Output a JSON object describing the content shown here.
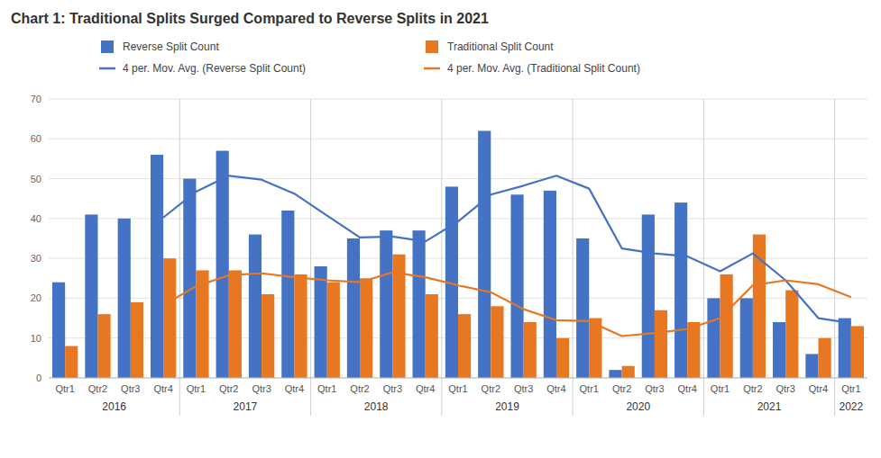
{
  "chart_data": {
    "type": "bar",
    "title": "Chart 1: Traditional Splits Surged Compared to Reverse Splits in 2021",
    "categories": [
      "Qtr1",
      "Qtr2",
      "Qtr3",
      "Qtr4",
      "Qtr1",
      "Qtr2",
      "Qtr3",
      "Qtr4",
      "Qtr1",
      "Qtr2",
      "Qtr3",
      "Qtr4",
      "Qtr1",
      "Qtr2",
      "Qtr3",
      "Qtr4",
      "Qtr1",
      "Qtr2",
      "Qtr3",
      "Qtr4",
      "Qtr1",
      "Qtr2",
      "Qtr3",
      "Qtr4",
      "Qtr1"
    ],
    "annotations": [
      "2016",
      "2017",
      "2018",
      "2019",
      "2020",
      "2021",
      "2022"
    ],
    "series": [
      {
        "name": "Reverse Split Count",
        "type": "bar",
        "color": "#4472C4",
        "values": [
          24,
          41,
          40,
          56,
          50,
          57,
          36,
          42,
          28,
          35,
          37,
          37,
          48,
          62,
          46,
          47,
          35,
          2,
          41,
          44,
          20,
          20,
          14,
          6,
          15
        ]
      },
      {
        "name": "Traditional Split Count",
        "type": "bar",
        "color": "#E87722",
        "values": [
          8,
          16,
          19,
          30,
          27,
          27,
          21,
          26,
          24,
          25,
          31,
          21,
          16,
          18,
          14,
          10,
          15,
          3,
          17,
          14,
          26,
          36,
          22,
          10,
          13
        ]
      },
      {
        "name": "4 per. Mov. Avg. (Reverse Split Count)",
        "type": "line",
        "color": "#4472C4",
        "values": [
          null,
          null,
          null,
          40.25,
          46.75,
          50.75,
          49.75,
          46.25,
          40.75,
          35.25,
          35.5,
          34.25,
          39.25,
          46,
          48.25,
          50.75,
          47.5,
          32.5,
          31.25,
          30.5,
          26.75,
          31.25,
          24.5,
          15,
          13.75
        ]
      },
      {
        "name": "4 per. Mov. Avg. (Traditional Split Count)",
        "type": "line",
        "color": "#E87722",
        "values": [
          null,
          null,
          null,
          18.25,
          23,
          25.75,
          26.25,
          25.25,
          24.5,
          24,
          26.5,
          25.25,
          23.25,
          21.5,
          17.25,
          14.5,
          14.25,
          10.5,
          11.25,
          12.25,
          15,
          23.25,
          24.5,
          23.5,
          20.25
        ]
      }
    ],
    "ylim": [
      0,
      70
    ],
    "yticks": [
      0,
      10,
      20,
      30,
      40,
      50,
      60,
      70
    ],
    "grid": true,
    "legend": "top"
  }
}
